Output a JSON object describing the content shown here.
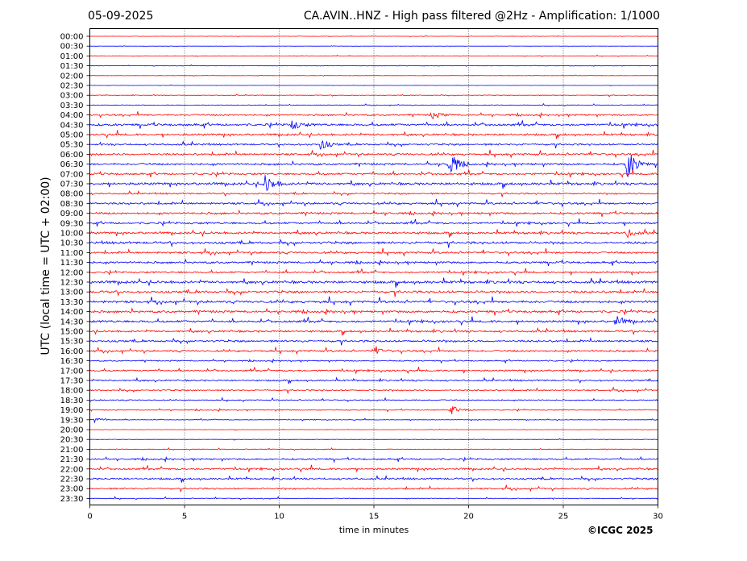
{
  "header": {
    "date": "05-09-2025",
    "title": "CA.AVIN..HNZ - High pass filtered @2Hz - Amplification: 1/1000"
  },
  "footer": {
    "copyright": "©ICGC 2025"
  },
  "colors": {
    "odd_rows": "#ff0000",
    "even_rows": "#0000ff",
    "grid": "#000000"
  },
  "chart_data": {
    "type": "seismogram",
    "title": "CA.AVIN..HNZ - High pass filtered @2Hz - Amplification: 1/1000",
    "xlabel": "time in minutes",
    "ylabel": "UTC (local time = UTC + 02:00)",
    "xlim": [
      0,
      30
    ],
    "x_ticks": [
      0,
      5,
      10,
      15,
      20,
      25,
      30
    ],
    "row_labels": [
      "00:00",
      "00:30",
      "01:00",
      "01:30",
      "02:00",
      "02:30",
      "03:00",
      "03:30",
      "04:00",
      "04:30",
      "05:00",
      "05:30",
      "06:00",
      "06:30",
      "07:00",
      "07:30",
      "08:00",
      "08:30",
      "09:00",
      "09:30",
      "10:00",
      "10:30",
      "11:00",
      "11:30",
      "12:00",
      "12:30",
      "13:00",
      "13:30",
      "14:00",
      "14:30",
      "15:00",
      "15:30",
      "16:00",
      "16:30",
      "17:00",
      "17:30",
      "18:00",
      "18:30",
      "19:00",
      "19:30",
      "20:00",
      "20:30",
      "21:00",
      "21:30",
      "22:00",
      "22:30",
      "23:00",
      "23:30"
    ],
    "row_colors": [
      "red",
      "blue",
      "red",
      "blue",
      "red",
      "blue",
      "red",
      "blue",
      "red",
      "blue",
      "red",
      "blue",
      "red",
      "blue",
      "red",
      "blue",
      "red",
      "blue",
      "red",
      "blue",
      "red",
      "blue",
      "red",
      "blue",
      "red",
      "blue",
      "red",
      "blue",
      "red",
      "blue",
      "red",
      "blue",
      "red",
      "blue",
      "red",
      "blue",
      "red",
      "blue",
      "red",
      "blue",
      "red",
      "blue",
      "red",
      "blue",
      "red",
      "blue",
      "red",
      "blue"
    ],
    "noise_levels": [
      0.15,
      0.1,
      0.2,
      0.2,
      0.15,
      0.1,
      0.3,
      0.3,
      0.8,
      1.1,
      1.0,
      0.9,
      1.0,
      1.0,
      1.0,
      1.2,
      0.8,
      1.0,
      1.0,
      1.0,
      1.1,
      1.2,
      1.0,
      1.0,
      0.9,
      1.3,
      1.2,
      1.2,
      1.1,
      1.1,
      1.0,
      1.0,
      0.9,
      0.6,
      0.8,
      0.8,
      0.7,
      0.5,
      0.5,
      0.3,
      0.15,
      0.2,
      0.3,
      0.8,
      0.9,
      0.9,
      0.8,
      0.4
    ],
    "events": [
      {
        "row": 8,
        "minute": 18.1,
        "amplitude": 5
      },
      {
        "row": 9,
        "minute": 10.7,
        "amplitude": 7
      },
      {
        "row": 11,
        "minute": 12.2,
        "amplitude": 7
      },
      {
        "row": 13,
        "minute": 19.0,
        "amplitude": 18
      },
      {
        "row": 13,
        "minute": 28.4,
        "amplitude": 20
      },
      {
        "row": 15,
        "minute": 9.3,
        "amplitude": 14
      },
      {
        "row": 20,
        "minute": 28.4,
        "amplitude": 5
      },
      {
        "row": 29,
        "minute": 27.8,
        "amplitude": 7
      },
      {
        "row": 32,
        "minute": 15.0,
        "amplitude": 5
      },
      {
        "row": 38,
        "minute": 19.1,
        "amplitude": 5
      },
      {
        "row": 39,
        "minute": 0.2,
        "amplitude": 4
      }
    ]
  }
}
